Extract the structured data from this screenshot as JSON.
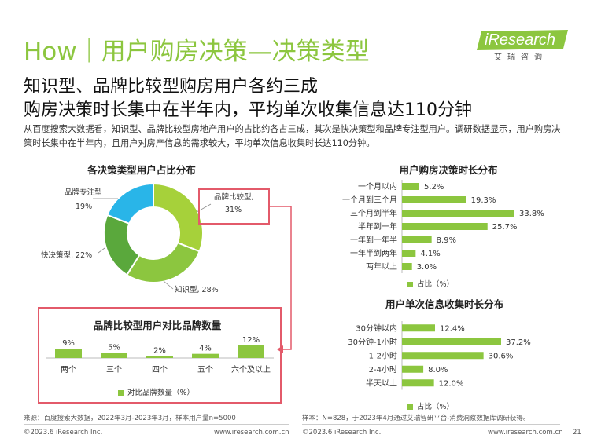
{
  "header": {
    "title": "How｜用户购房决策—决策类型",
    "logo_text": "iResearch",
    "logo_sub": "艾瑞咨询"
  },
  "headline": {
    "line1": "知识型、品牌比较型购房用户各约三成",
    "line2": "购房决策时长集中在半年内，平均单次收集信息达110分钟"
  },
  "description": "从百度搜索大数据看，知识型、品牌比较型房地产用户的占比约各占三成，其次是快决策型和品牌专注型用户。调研数据显示，用户购房决策时长集中在半年内，且用户对房产信息的需求较大，平均单次信息收集时长达110分钟。",
  "colors": {
    "accent": "#8cc63f",
    "highlight_border": "#e35a6a",
    "donut": [
      "#a6d13a",
      "#8cc63f",
      "#5aa83c",
      "#29b5e8"
    ]
  },
  "chart_data": [
    {
      "type": "pie",
      "title": "各决策类型用户占比分布",
      "categories": [
        "品牌比较型",
        "知识型",
        "快决策型",
        "品牌专注型"
      ],
      "values": [
        31,
        28,
        22,
        19
      ],
      "labels": [
        "31%",
        "28%",
        "22%",
        "19%"
      ]
    },
    {
      "type": "bar",
      "title": "品牌比较型用户对比品牌数量",
      "categories": [
        "两个",
        "三个",
        "四个",
        "五个",
        "六个及以上"
      ],
      "values": [
        9,
        5,
        2,
        4,
        12
      ],
      "labels": [
        "9%",
        "5%",
        "2%",
        "4%",
        "12%"
      ],
      "legend": "对比品牌数量（%）",
      "ylim": [
        0,
        12
      ]
    },
    {
      "type": "bar",
      "title": "用户购房决策时长分布",
      "categories": [
        "一个月以内",
        "一个月到三个月",
        "三个月到半年",
        "半年到一年",
        "一年到一年半",
        "一年半到两年",
        "两年以上"
      ],
      "values": [
        5.2,
        19.3,
        33.8,
        25.7,
        8.9,
        4.1,
        3.0
      ],
      "labels": [
        "5.2%",
        "19.3%",
        "33.8%",
        "25.7%",
        "8.9%",
        "4.1%",
        "3.0%"
      ],
      "legend": "占比（%）",
      "xlim": [
        0,
        33.8
      ]
    },
    {
      "type": "bar",
      "title": "用户单次信息收集时长分布",
      "categories": [
        "30分钟以内",
        "30分钟-1小时",
        "1-2小时",
        "2-4小时",
        "半天以上"
      ],
      "values": [
        12.4,
        37.2,
        30.6,
        8.0,
        12.0
      ],
      "labels": [
        "12.4%",
        "37.2%",
        "30.6%",
        "8.0%",
        "12.0%"
      ],
      "legend": "占比（%）",
      "xlim": [
        0,
        37.2
      ]
    }
  ],
  "sources": {
    "left": "来源：百度搜索大数据，2022年3月-2023年3月，样本用户量n=5000",
    "right": "样本：N=828，于2023年4月通过艾瑞智研平台-消费洞察数据库调研获得。"
  },
  "footer": {
    "copyright_left": "©2023.6 iResearch Inc.",
    "url_left": "www.iresearch.com.cn",
    "copyright_right": "©2023.6 iResearch Inc.",
    "url_right": "www.iresearch.com.cn",
    "page": "21"
  }
}
